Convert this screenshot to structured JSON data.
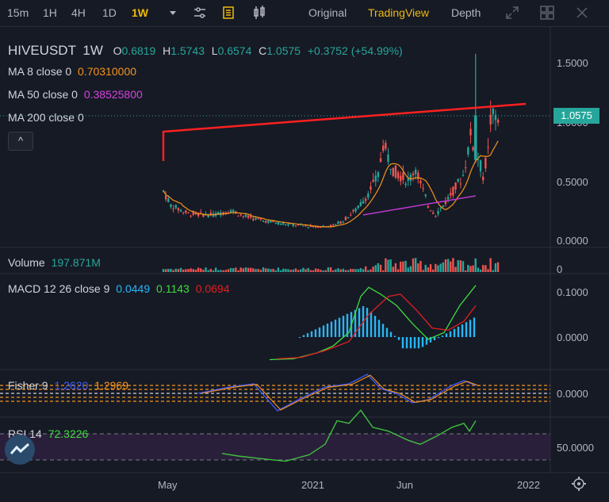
{
  "toolbar": {
    "intervals": [
      "15m",
      "1H",
      "4H",
      "1D",
      "1W"
    ],
    "active_interval": "1W",
    "views": [
      "Original",
      "TradingView",
      "Depth"
    ],
    "active_view": "TradingView",
    "icons": [
      "dropdown-arrow-icon",
      "indicator-settings-icon",
      "bookmark-icon",
      "candle-type-icon",
      "expand-icon",
      "grid-layout-icon",
      "close-icon"
    ]
  },
  "header": {
    "symbol": "HIVEUSDT",
    "interval": "1W",
    "open_label": "O",
    "open": "0.6819",
    "high_label": "H",
    "high": "1.5743",
    "low_label": "L",
    "low": "0.6574",
    "close_label": "C",
    "close": "1.0575",
    "change": "+0.3752 (+54.99%)"
  },
  "ma": [
    {
      "label": "MA 8 close 0",
      "value": "0.70310000",
      "color": "#f7931a"
    },
    {
      "label": "MA 50 close 0",
      "value": "0.38525800",
      "color": "#d642e0"
    },
    {
      "label": "MA 200 close 0",
      "value": "",
      "color": "#9c27b0"
    }
  ],
  "collapse_button": "^",
  "last_price_tag": "1.0575",
  "colors": {
    "up": "#26a69a",
    "down": "#ef5350",
    "ma8": "#f7931a",
    "ma50": "#c43ad4",
    "trendline": "#ff2020",
    "accent": "#f0b90b"
  },
  "chart_data": {
    "type": "candlestick",
    "main": {
      "y_ticks": [
        "1.5000",
        "1.0000",
        "0.5000",
        "0.0000"
      ],
      "ylim": [
        -0.05,
        1.65
      ],
      "x_tick_labels": [
        "May",
        "2021",
        "Jun",
        "2022"
      ]
    },
    "volume": {
      "label": "Volume",
      "value": "197.871M",
      "y_tick": "0"
    },
    "macd": {
      "label": "MACD 12 26 close 9",
      "values": [
        "0.0449",
        "0.1143",
        "0.0694"
      ],
      "y_ticks": [
        "0.1000",
        "0.0000"
      ]
    },
    "fisher": {
      "label": "Fisher 9",
      "values": [
        "1.2620",
        "1.2969"
      ],
      "y_ticks": [
        "0.0000"
      ]
    },
    "rsi": {
      "label": "RSI 14",
      "value": "72.3226",
      "y_ticks": [
        "50.0000"
      ]
    }
  }
}
